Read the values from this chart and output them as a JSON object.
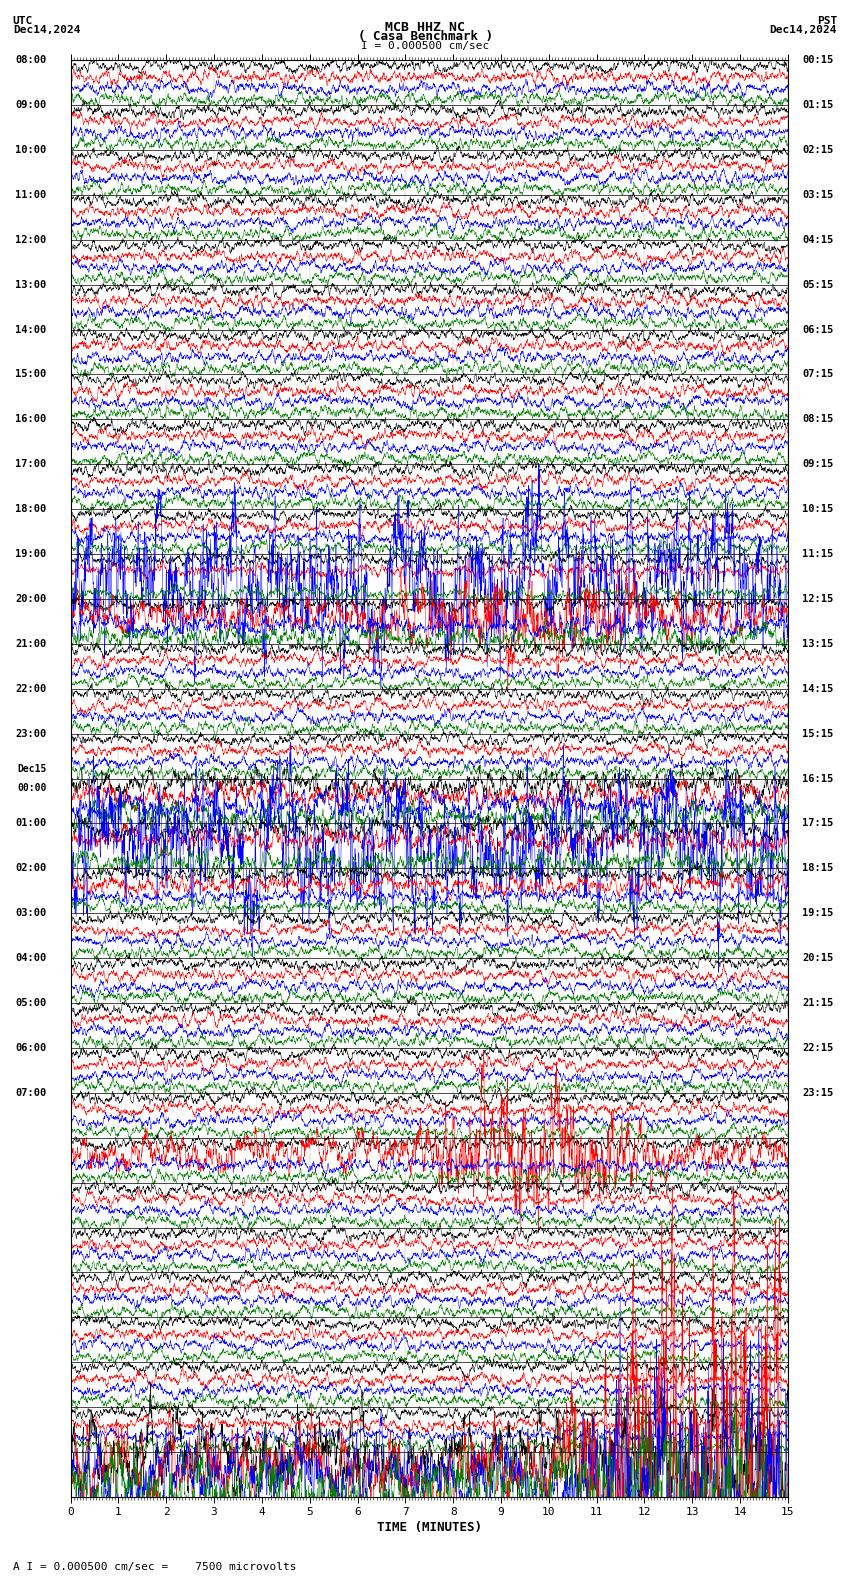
{
  "title_line1": "MCB HHZ NC",
  "title_line2": "( Casa Benchmark )",
  "title_scale": "I = 0.000500 cm/sec",
  "utc_label": "UTC",
  "utc_date": "Dec14,2024",
  "pst_label": "PST",
  "pst_date": "Dec14,2024",
  "bottom_label": "A I = 0.000500 cm/sec =    7500 microvolts",
  "xlabel": "TIME (MINUTES)",
  "bg_color": "#ffffff",
  "trace_colors": [
    "#000000",
    "#ff0000",
    "#0000ff",
    "#008000"
  ],
  "n_rows": 32,
  "n_traces_per_row": 4,
  "minutes_per_row": 15,
  "utc_times": [
    "08:00",
    "09:00",
    "10:00",
    "11:00",
    "12:00",
    "13:00",
    "14:00",
    "15:00",
    "16:00",
    "17:00",
    "18:00",
    "19:00",
    "20:00",
    "21:00",
    "22:00",
    "23:00",
    "Dec15\n00:00",
    "01:00",
    "02:00",
    "03:00",
    "04:00",
    "05:00",
    "06:00",
    "07:00",
    "",
    "",
    "",
    "",
    "",
    "",
    "",
    ""
  ],
  "pst_times": [
    "00:15",
    "01:15",
    "02:15",
    "03:15",
    "04:15",
    "05:15",
    "06:15",
    "07:15",
    "08:15",
    "09:15",
    "10:15",
    "11:15",
    "12:15",
    "13:15",
    "14:15",
    "15:15",
    "16:15",
    "17:15",
    "18:15",
    "19:15",
    "20:15",
    "21:15",
    "22:15",
    "23:15",
    "",
    "",
    "",
    "",
    "",
    "",
    "",
    ""
  ],
  "seed": 42
}
